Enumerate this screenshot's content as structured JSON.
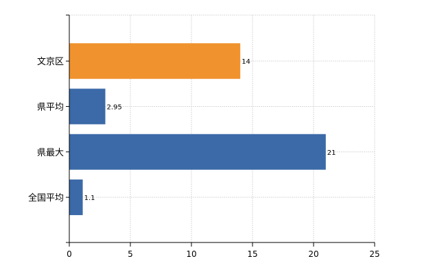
{
  "chart_data": {
    "type": "bar",
    "orientation": "horizontal",
    "categories": [
      "文京区",
      "県平均",
      "県最大",
      "全国平均"
    ],
    "values": [
      14,
      2.95,
      21,
      1.1
    ],
    "value_labels": [
      "14",
      "2.95",
      "21",
      "1.1"
    ],
    "bar_colors": [
      "#f0932f",
      "#3c6aa8",
      "#3c6aa8",
      "#3c6aa8"
    ],
    "xlim": [
      0,
      25
    ],
    "xticks": [
      0,
      5,
      10,
      15,
      20,
      25
    ],
    "xtick_labels": [
      "0",
      "5",
      "10",
      "15",
      "20",
      "25"
    ],
    "title": "",
    "xlabel": "",
    "ylabel": "",
    "grid": true,
    "legend": "none"
  }
}
